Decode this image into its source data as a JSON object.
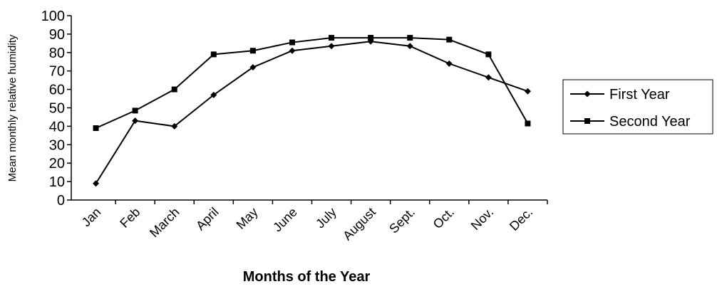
{
  "chart_data": {
    "type": "line",
    "x_label": "Months of the Year",
    "y_label": "Mean monthly relative humidity",
    "categories": [
      "Jan",
      "Feb",
      "March",
      "April",
      "May",
      "June",
      "July",
      "August",
      "Sept.",
      "Oct.",
      "Nov.",
      "Dec."
    ],
    "series": [
      {
        "name": "First Year",
        "color": "#000000",
        "marker": "diamond",
        "values": [
          9,
          43,
          40,
          57,
          72,
          81,
          83.5,
          86,
          83.5,
          74,
          66.5,
          59
        ]
      },
      {
        "name": "Second Year",
        "color": "#000000",
        "marker": "square",
        "values": [
          39,
          48.5,
          60,
          79,
          81,
          85.5,
          88,
          88,
          88,
          87,
          79,
          41.5
        ]
      }
    ],
    "ylim": [
      0,
      100
    ],
    "yticks": [
      0,
      10,
      20,
      30,
      40,
      50,
      60,
      70,
      80,
      90,
      100
    ],
    "grid": false,
    "legend": "right"
  }
}
